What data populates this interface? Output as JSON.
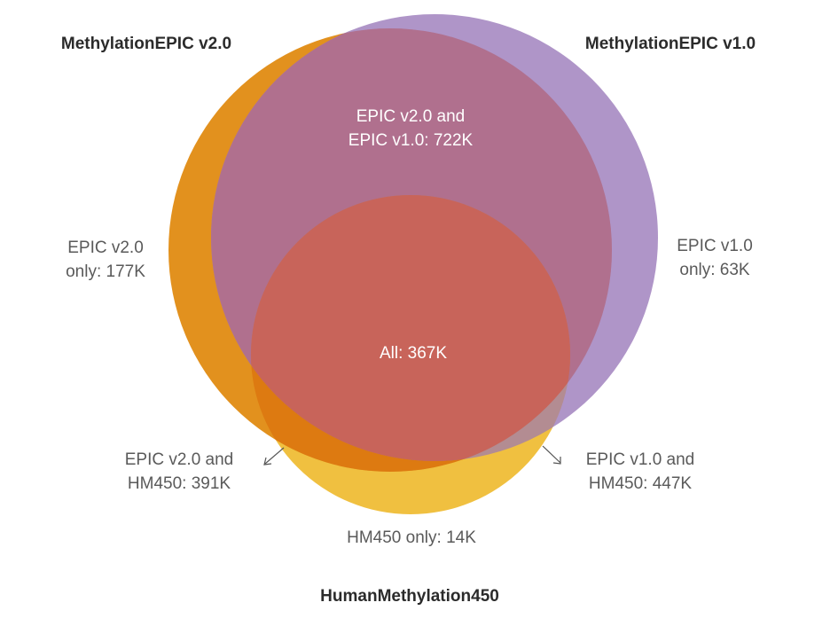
{
  "sets": {
    "epic_v2": {
      "name": "MethylationEPIC v2.0",
      "color": "#E08A10"
    },
    "epic_v1": {
      "name": "MethylationEPIC v1.0",
      "color": "#A486C0"
    },
    "hm450": {
      "name": "HumanMethylation450",
      "color": "#F0C040"
    }
  },
  "regions": {
    "v2_v1": {
      "line1": "EPIC v2.0 and",
      "line2": "EPIC v1.0: 722K"
    },
    "v2_only": {
      "line1": "EPIC v2.0",
      "line2": "only: 177K"
    },
    "v1_only": {
      "line1": "EPIC v1.0",
      "line2": "only: 63K"
    },
    "all": {
      "line1": "All: 367K"
    },
    "v2_hm450": {
      "line1": "EPIC v2.0 and",
      "line2": "HM450: 391K"
    },
    "v1_hm450": {
      "line1": "EPIC v1.0 and",
      "line2": "HM450: 447K"
    },
    "hm450_only": {
      "line1": "HM450 only: 14K"
    }
  },
  "overlap_colors": {
    "v2_v1": "#B0708E",
    "all": "#C8645A"
  }
}
